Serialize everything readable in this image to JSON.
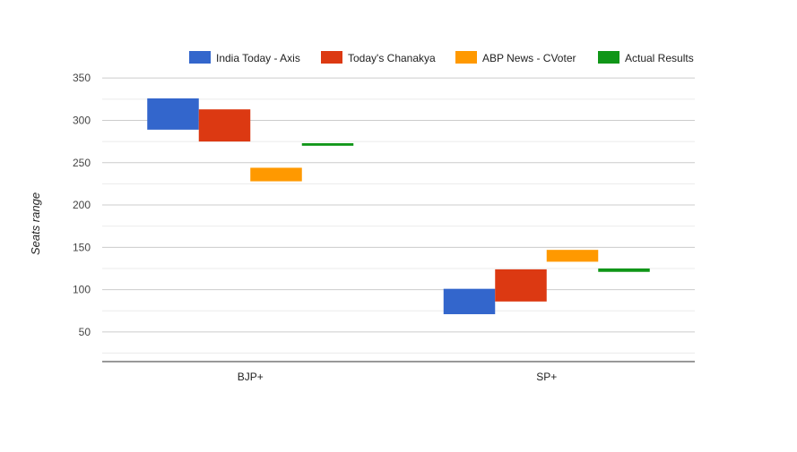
{
  "chart_data": {
    "type": "bar",
    "subtype": "floating-range",
    "categories": [
      "BJP+",
      "SP+"
    ],
    "series": [
      {
        "name": "India Today - Axis",
        "color": "#3366cc",
        "ranges": [
          [
            289,
            326
          ],
          [
            71,
            101
          ]
        ]
      },
      {
        "name": "Today's Chanakya",
        "color": "#dc3912",
        "ranges": [
          [
            275,
            313
          ],
          [
            86,
            124
          ]
        ]
      },
      {
        "name": "ABP News - CVoter",
        "color": "#ff9900",
        "ranges": [
          [
            228,
            244
          ],
          [
            133,
            147
          ]
        ]
      },
      {
        "name": "Actual Results",
        "color": "#109618",
        "ranges": [
          [
            270,
            273
          ],
          [
            121,
            125
          ]
        ]
      }
    ],
    "ylabel": "Seats range",
    "xlabel": "",
    "title": "",
    "ylim": [
      15,
      365
    ],
    "yticks": [
      50,
      100,
      150,
      200,
      250,
      300,
      350
    ],
    "grid": true,
    "legend_position": "top-right"
  }
}
